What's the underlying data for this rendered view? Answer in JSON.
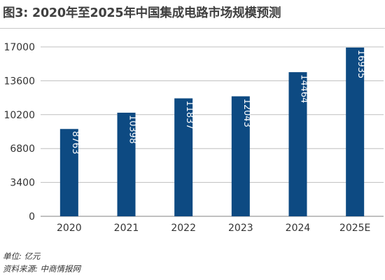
{
  "title": "图3: 2020年至2025年中国集成电路市场规模预测",
  "footnote": {
    "unit": "单位: 亿元",
    "source": "资料来源: 中商情报网"
  },
  "colors": {
    "bar": "#0d4a82",
    "grid": "#bfbfbf",
    "axis": "#808080",
    "bar_label": "#ffffff"
  },
  "chart_data": {
    "type": "bar",
    "title": "",
    "xlabel": "",
    "ylabel": "",
    "categories": [
      "2020",
      "2021",
      "2022",
      "2023",
      "2024",
      "2025E"
    ],
    "values": [
      8763,
      10398,
      11837,
      12043,
      14464,
      16935
    ],
    "ylim": [
      0,
      17000
    ],
    "yticks": [
      0,
      3400,
      6800,
      10200,
      13600,
      17000
    ],
    "grid": true,
    "legend": "none",
    "data_labels": "inside-rotated"
  }
}
